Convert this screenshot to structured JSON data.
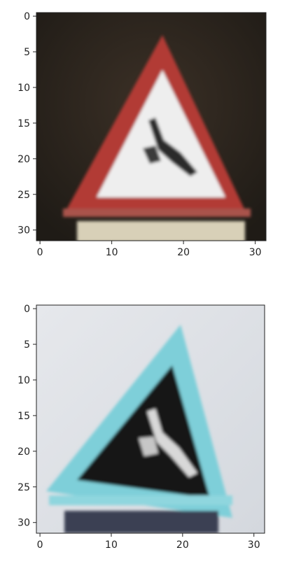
{
  "figure": {
    "panels": [
      {
        "name": "top",
        "x_ticks": [
          "0",
          "10",
          "20",
          "30"
        ],
        "y_ticks": [
          "0",
          "5",
          "10",
          "15",
          "20",
          "25",
          "30"
        ],
        "image": {
          "content": "red-white-triangle-warning-sign",
          "colors": {
            "background": "#2a221c",
            "border": "#b23a35",
            "fill": "#eeeeee",
            "symbol": "#2b2b2b",
            "post": "#d8d0b8"
          }
        }
      },
      {
        "name": "bottom",
        "x_ticks": [
          "0",
          "10",
          "20",
          "30"
        ],
        "y_ticks": [
          "0",
          "5",
          "10",
          "15",
          "20",
          "25",
          "30"
        ],
        "image": {
          "content": "cyan-dark-triangle-warning-sign",
          "colors": {
            "background": "#dfe2e6",
            "border": "#7ecfd9",
            "fill": "#161616",
            "symbol": "#d8d8d8",
            "post": "#3a3f52"
          }
        }
      }
    ]
  }
}
